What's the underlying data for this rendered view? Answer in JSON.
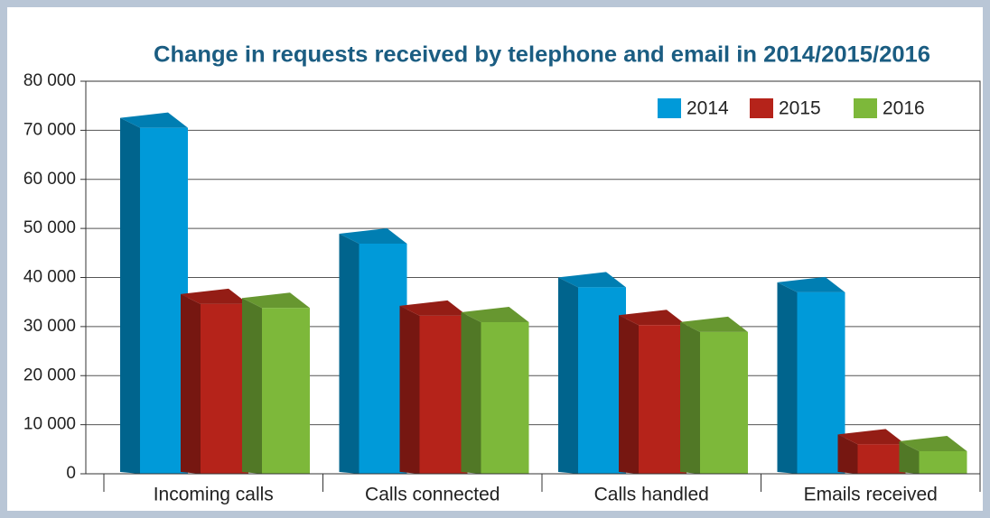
{
  "chart_data": {
    "type": "bar3d",
    "title": "Change in requests received by telephone and email in 2014/2015/2016",
    "categories": [
      "Incoming calls",
      "Calls connected",
      "Calls handled",
      "Emails received"
    ],
    "series": [
      {
        "name": "2014",
        "color": "#009ad9",
        "values": [
          70500,
          46900,
          38000,
          37000
        ]
      },
      {
        "name": "2015",
        "color": "#b5231a",
        "values": [
          34600,
          32200,
          30300,
          6000
        ]
      },
      {
        "name": "2016",
        "color": "#7db83a",
        "values": [
          33800,
          30900,
          28900,
          4600
        ]
      }
    ],
    "ylim": [
      0,
      80000
    ],
    "yticks": [
      0,
      {
        "value": 10000,
        "label": "10 000"
      },
      {
        "value": 20000,
        "label": "20 000"
      },
      {
        "value": 30000,
        "label": "30 000"
      },
      {
        "value": 40000,
        "label": "40 000"
      },
      {
        "value": 50000,
        "label": "50 000"
      },
      {
        "value": 60000,
        "label": "60 000"
      },
      {
        "value": 70000,
        "label": "70 000"
      },
      {
        "value": 80000,
        "label": "80 000"
      }
    ],
    "grid": true,
    "legend": "top-right"
  }
}
